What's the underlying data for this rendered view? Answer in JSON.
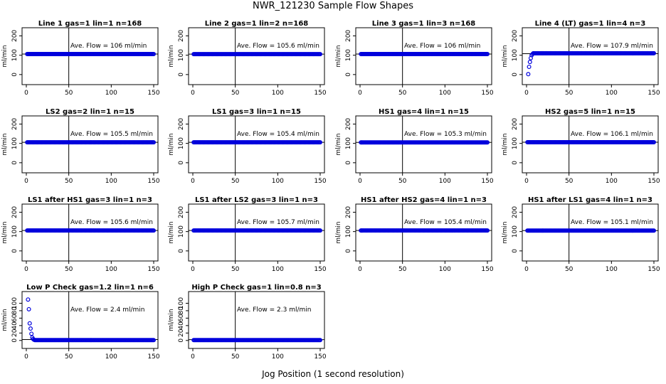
{
  "page": {
    "title": "NWR_121230  Sample Flow Shapes",
    "xlabel": "Jog Position (1 second resolution)"
  },
  "colors": {
    "points": "#0000dd",
    "frame": "#000000"
  },
  "chart_data": [
    {
      "type": "scatter",
      "title": "Line 1 gas=1 lin=1 n=168",
      "annotation": "Ave. Flow =  106  ml/min",
      "ylabel": "ml/min",
      "xlim": [
        0,
        150
      ],
      "ylim": [
        -30,
        220
      ],
      "xticks": [
        "0",
        "50",
        "100",
        "150"
      ],
      "yticks": [
        "0",
        "100",
        "200"
      ],
      "vline": 50,
      "hline": 106,
      "series": [
        {
          "x_range": [
            0,
            150
          ],
          "level": 106
        }
      ]
    },
    {
      "type": "scatter",
      "title": "Line 2 gas=1 lin=2 n=168",
      "annotation": "Ave. Flow =  105.6  ml/min",
      "ylabel": "ml/min",
      "xlim": [
        0,
        150
      ],
      "ylim": [
        -30,
        220
      ],
      "xticks": [
        "0",
        "50",
        "100",
        "150"
      ],
      "yticks": [
        "0",
        "100",
        "200"
      ],
      "vline": 50,
      "hline": 105.6,
      "series": [
        {
          "x_range": [
            0,
            150
          ],
          "level": 105.6
        }
      ]
    },
    {
      "type": "scatter",
      "title": "Line 3 gas=1 lin=3 n=168",
      "annotation": "Ave. Flow =  106  ml/min",
      "ylabel": "ml/min",
      "xlim": [
        0,
        150
      ],
      "ylim": [
        -30,
        220
      ],
      "xticks": [
        "0",
        "50",
        "100",
        "150"
      ],
      "yticks": [
        "0",
        "100",
        "200"
      ],
      "vline": 50,
      "hline": 106,
      "series": [
        {
          "x_range": [
            0,
            150
          ],
          "level": 106
        }
      ]
    },
    {
      "type": "scatter",
      "title": "Line 4 (LT) gas=1 lin=4 n=3",
      "annotation": "Ave. Flow =  107.9  ml/min",
      "ylabel": "ml/min",
      "xlim": [
        0,
        150
      ],
      "ylim": [
        -30,
        220
      ],
      "xticks": [
        "0",
        "50",
        "100",
        "150"
      ],
      "yticks": [
        "0",
        "100",
        "200"
      ],
      "vline": 50,
      "hline": 107.9,
      "series": [
        {
          "x_range": [
            0,
            150
          ],
          "level": 110,
          "ramp": [
            [
              2,
              2
            ],
            [
              3,
              40
            ],
            [
              4,
              65
            ],
            [
              5,
              85
            ],
            [
              6,
              100
            ],
            [
              7,
              106
            ],
            [
              8,
              110
            ]
          ]
        }
      ]
    },
    {
      "type": "scatter",
      "title": "LS2 gas=2 lin=1 n=15",
      "annotation": "Ave. Flow =  105.5  ml/min",
      "ylabel": "ml/min",
      "xlim": [
        0,
        150
      ],
      "ylim": [
        -30,
        220
      ],
      "xticks": [
        "0",
        "50",
        "100",
        "150"
      ],
      "yticks": [
        "0",
        "100",
        "200"
      ],
      "vline": 50,
      "hline": 105.5,
      "series": [
        {
          "x_range": [
            0,
            150
          ],
          "level": 105.5
        }
      ]
    },
    {
      "type": "scatter",
      "title": "LS1 gas=3 lin=1 n=15",
      "annotation": "Ave. Flow =  105.4  ml/min",
      "ylabel": "ml/min",
      "xlim": [
        0,
        150
      ],
      "ylim": [
        -30,
        220
      ],
      "xticks": [
        "0",
        "50",
        "100",
        "150"
      ],
      "yticks": [
        "0",
        "100",
        "200"
      ],
      "vline": 50,
      "hline": 105.4,
      "series": [
        {
          "x_range": [
            0,
            150
          ],
          "level": 105.4
        }
      ]
    },
    {
      "type": "scatter",
      "title": "HS1 gas=4 lin=1 n=15",
      "annotation": "Ave. Flow =  105.3  ml/min",
      "ylabel": "ml/min",
      "xlim": [
        0,
        150
      ],
      "ylim": [
        -30,
        220
      ],
      "xticks": [
        "0",
        "50",
        "100",
        "150"
      ],
      "yticks": [
        "0",
        "100",
        "200"
      ],
      "vline": 50,
      "hline": 105.3,
      "series": [
        {
          "x_range": [
            0,
            150
          ],
          "level": 105.3
        }
      ]
    },
    {
      "type": "scatter",
      "title": "HS2 gas=5 lin=1 n=15",
      "annotation": "Ave. Flow =  106.1  ml/min",
      "ylabel": "ml/min",
      "xlim": [
        0,
        150
      ],
      "ylim": [
        -30,
        220
      ],
      "xticks": [
        "0",
        "50",
        "100",
        "150"
      ],
      "yticks": [
        "0",
        "100",
        "200"
      ],
      "vline": 50,
      "hline": 106.1,
      "series": [
        {
          "x_range": [
            0,
            150
          ],
          "level": 106.1
        }
      ]
    },
    {
      "type": "scatter",
      "title": "LS1 after HS1 gas=3 lin=1 n=3",
      "annotation": "Ave. Flow =  105.6  ml/min",
      "ylabel": "ml/min",
      "xlim": [
        0,
        150
      ],
      "ylim": [
        -30,
        220
      ],
      "xticks": [
        "0",
        "50",
        "100",
        "150"
      ],
      "yticks": [
        "0",
        "100",
        "200"
      ],
      "vline": 50,
      "hline": 105.6,
      "series": [
        {
          "x_range": [
            0,
            150
          ],
          "level": 105.6
        }
      ]
    },
    {
      "type": "scatter",
      "title": "LS1 after LS2 gas=3 lin=1 n=3",
      "annotation": "Ave. Flow =  105.7  ml/min",
      "ylabel": "ml/min",
      "xlim": [
        0,
        150
      ],
      "ylim": [
        -30,
        220
      ],
      "xticks": [
        "0",
        "50",
        "100",
        "150"
      ],
      "yticks": [
        "0",
        "100",
        "200"
      ],
      "vline": 50,
      "hline": 105.7,
      "series": [
        {
          "x_range": [
            0,
            150
          ],
          "level": 105.7
        }
      ]
    },
    {
      "type": "scatter",
      "title": "HS1 after HS2 gas=4 lin=1 n=3",
      "annotation": "Ave. Flow =  105.4  ml/min",
      "ylabel": "ml/min",
      "xlim": [
        0,
        150
      ],
      "ylim": [
        -30,
        220
      ],
      "xticks": [
        "0",
        "50",
        "100",
        "150"
      ],
      "yticks": [
        "0",
        "100",
        "200"
      ],
      "vline": 50,
      "hline": 105.4,
      "series": [
        {
          "x_range": [
            0,
            150
          ],
          "level": 105.4
        }
      ]
    },
    {
      "type": "scatter",
      "title": "HS1 after LS1 gas=4 lin=1 n=3",
      "annotation": "Ave. Flow =  105.1  ml/min",
      "ylabel": "ml/min",
      "xlim": [
        0,
        150
      ],
      "ylim": [
        -30,
        220
      ],
      "xticks": [
        "0",
        "50",
        "100",
        "150"
      ],
      "yticks": [
        "0",
        "100",
        "200"
      ],
      "vline": 50,
      "hline": 105.1,
      "series": [
        {
          "x_range": [
            0,
            150
          ],
          "level": 105.1
        }
      ]
    },
    {
      "type": "scatter",
      "title": "Low P Check gas=1.2 lin=1 n=6",
      "annotation": "Ave. Flow =  2.4  ml/min",
      "ylabel": "ml/min",
      "xlim": [
        0,
        150
      ],
      "ylim": [
        -10,
        120
      ],
      "xticks": [
        "0",
        "50",
        "100",
        "150"
      ],
      "yticks": [
        "0",
        "20",
        "40",
        "60",
        "80",
        "100"
      ],
      "vline": 50,
      "hline": 2.4,
      "series": [
        {
          "x_range": [
            0,
            150
          ],
          "level": 1,
          "ramp": [
            [
              2,
              110
            ],
            [
              3,
              84
            ],
            [
              4,
              46
            ],
            [
              5,
              32
            ],
            [
              6,
              18
            ],
            [
              7,
              8
            ],
            [
              8,
              4
            ],
            [
              9,
              2
            ]
          ]
        }
      ]
    },
    {
      "type": "scatter",
      "title": "High P Check gas=1 lin=0.8 n=3",
      "annotation": "Ave. Flow =  2.3  ml/min",
      "ylabel": "ml/min",
      "xlim": [
        0,
        150
      ],
      "ylim": [
        -10,
        120
      ],
      "xticks": [
        "0",
        "50",
        "100",
        "150"
      ],
      "yticks": [
        "0",
        "20",
        "40",
        "60",
        "80",
        "100"
      ],
      "vline": 50,
      "hline": 2.3,
      "series": [
        {
          "x_range": [
            0,
            150
          ],
          "level": 1
        }
      ]
    }
  ]
}
